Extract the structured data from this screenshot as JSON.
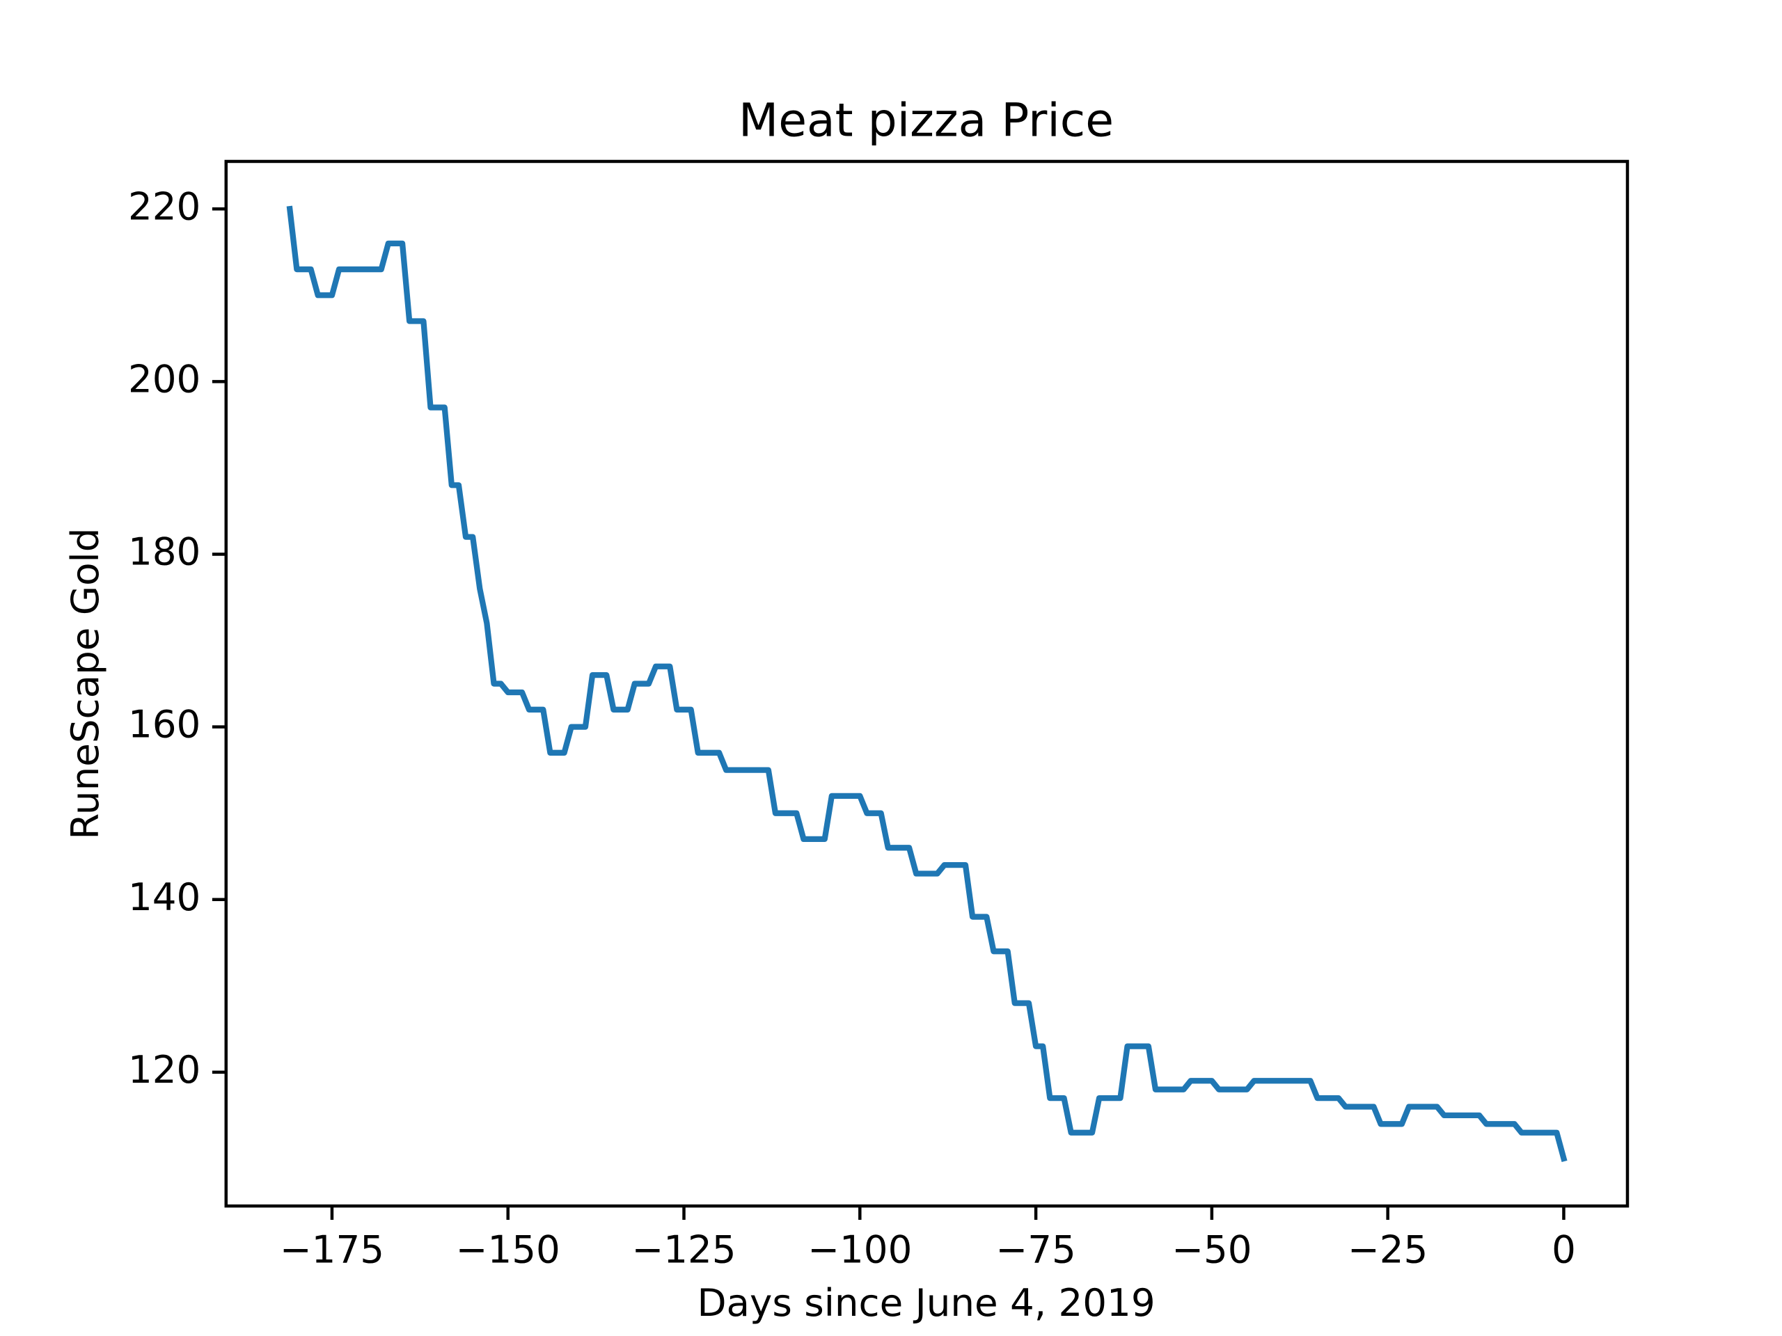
{
  "chart_data": {
    "type": "line",
    "title": "Meat pizza Price",
    "xlabel": "Days since June 4, 2019",
    "ylabel": "RuneScape Gold",
    "x": [
      -181,
      -180,
      -178,
      -177,
      -175,
      -174,
      -168,
      -167,
      -165,
      -164,
      -162,
      -161,
      -159,
      -158,
      -157,
      -156,
      -155,
      -154,
      -153,
      -152,
      -151,
      -150,
      -148,
      -147,
      -145,
      -144,
      -142,
      -141,
      -139,
      -138,
      -136,
      -135,
      -133,
      -132,
      -130,
      -129,
      -127,
      -126,
      -124,
      -123,
      -120,
      -119,
      -113,
      -112,
      -109,
      -108,
      -105,
      -104,
      -100,
      -99,
      -97,
      -96,
      -93,
      -92,
      -89,
      -88,
      -85,
      -84,
      -82,
      -81,
      -79,
      -78,
      -76,
      -75,
      -74,
      -73,
      -71,
      -70,
      -67,
      -66,
      -63,
      -62,
      -59,
      -58,
      -54,
      -53,
      -50,
      -49,
      -45,
      -44,
      -36,
      -35,
      -32,
      -31,
      -27,
      -26,
      -23,
      -22,
      -18,
      -17,
      -12,
      -11,
      -7,
      -6,
      -1,
      0
    ],
    "series": [
      {
        "name": "price",
        "color": "#1f77b4",
        "values": [
          220,
          213,
          213,
          210,
          210,
          213,
          213,
          216,
          216,
          207,
          207,
          197,
          197,
          188,
          188,
          182,
          182,
          176,
          172,
          165,
          165,
          164,
          164,
          162,
          162,
          157,
          157,
          160,
          160,
          166,
          166,
          162,
          162,
          165,
          165,
          167,
          167,
          162,
          162,
          157,
          157,
          155,
          155,
          150,
          150,
          147,
          147,
          152,
          152,
          150,
          150,
          146,
          146,
          143,
          143,
          144,
          144,
          138,
          138,
          134,
          134,
          128,
          128,
          123,
          123,
          117,
          117,
          113,
          113,
          117,
          117,
          123,
          123,
          118,
          118,
          119,
          119,
          118,
          118,
          119,
          119,
          117,
          117,
          116,
          116,
          114,
          114,
          116,
          116,
          115,
          115,
          114,
          114,
          113,
          113,
          110
        ]
      }
    ],
    "xlim": [
      -190.05,
      9.05
    ],
    "ylim": [
      104.5,
      225.5
    ],
    "xticks": [
      {
        "value": -175,
        "label": "−175"
      },
      {
        "value": -150,
        "label": "−150"
      },
      {
        "value": -125,
        "label": "−125"
      },
      {
        "value": -100,
        "label": "−100"
      },
      {
        "value": -75,
        "label": "−75"
      },
      {
        "value": -50,
        "label": "−50"
      },
      {
        "value": -25,
        "label": "−25"
      },
      0
    ],
    "yticks": [
      120,
      140,
      160,
      180,
      200,
      220
    ]
  }
}
